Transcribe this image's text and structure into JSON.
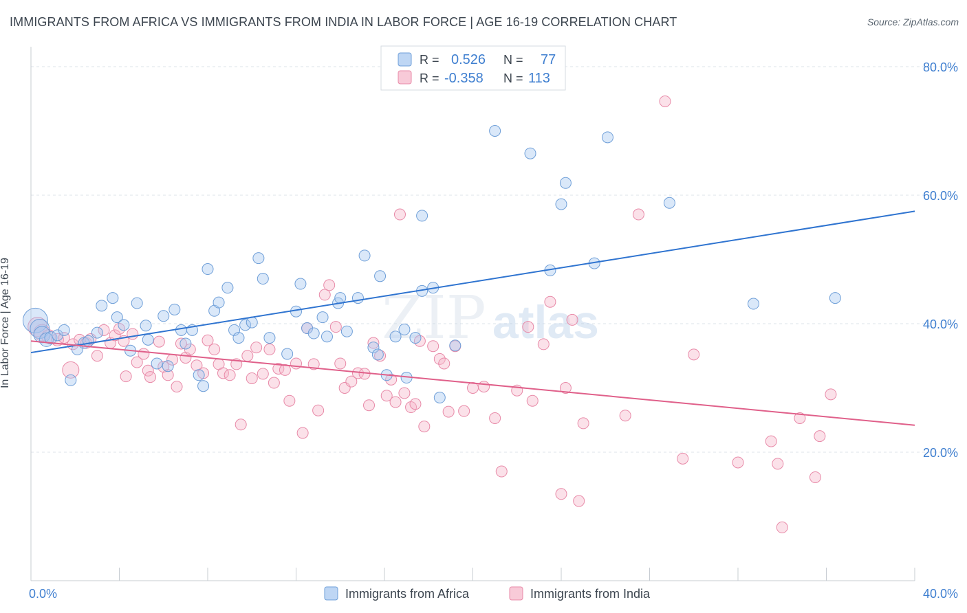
{
  "header": {
    "title": "IMMIGRANTS FROM AFRICA VS IMMIGRANTS FROM INDIA IN LABOR FORCE | AGE 16-19 CORRELATION CHART",
    "source": "Source: ZipAtlas.com"
  },
  "watermark": {
    "part1": "ZIP",
    "part2": "atlas"
  },
  "colors": {
    "africa_fill": "#a8c8f0",
    "africa_stroke": "#6f9fd8",
    "africa_line": "#2f74d0",
    "india_fill": "#f6b8cb",
    "india_stroke": "#e88aa8",
    "india_line": "#e0608a",
    "axis_text": "#3f7fd0",
    "grid": "#dde3ea"
  },
  "chart_data": {
    "type": "scatter",
    "title": "IMMIGRANTS FROM AFRICA VS IMMIGRANTS FROM INDIA IN LABOR FORCE | AGE 16-19 CORRELATION CHART",
    "xlabel": "",
    "ylabel": "In Labor Force | Age 16-19",
    "xlim": [
      0,
      40
    ],
    "ylim": [
      0,
      80
    ],
    "x_tick_labels": [
      "0.0%",
      "40.0%"
    ],
    "y_tick_values": [
      20,
      40,
      60,
      80
    ],
    "y_tick_labels": [
      "20.0%",
      "40.0%",
      "60.0%",
      "80.0%"
    ],
    "grid": true,
    "legend_top": [
      {
        "series": "Immigrants from Africa",
        "r_label": "R =",
        "r_value": "0.526",
        "n_label": "N =",
        "n_value": "77"
      },
      {
        "series": "Immigrants from India",
        "r_label": "R =",
        "r_value": "-0.358",
        "n_label": "N =",
        "n_value": "113"
      }
    ],
    "series": [
      {
        "name": "Immigrants from Africa",
        "trend": {
          "x": [
            0,
            40
          ],
          "y": [
            35.5,
            57.5
          ]
        },
        "points": [
          [
            0.2,
            40.5,
            18
          ],
          [
            0.4,
            39.2,
            14
          ],
          [
            0.5,
            38.3,
            12
          ],
          [
            0.7,
            37.5,
            10
          ],
          [
            0.9,
            37.8,
            9
          ],
          [
            1.2,
            38.2,
            8
          ],
          [
            1.5,
            39.0,
            8
          ],
          [
            1.8,
            31.2,
            8
          ],
          [
            2.1,
            36.0,
            8
          ],
          [
            2.4,
            37.0,
            8
          ],
          [
            2.6,
            37.3,
            8
          ],
          [
            3.0,
            38.6,
            8
          ],
          [
            3.2,
            42.8,
            8
          ],
          [
            3.7,
            44.0,
            8
          ],
          [
            3.9,
            41.0,
            8
          ],
          [
            4.2,
            39.8,
            8
          ],
          [
            4.5,
            35.8,
            8
          ],
          [
            4.8,
            43.2,
            8
          ],
          [
            5.2,
            39.7,
            8
          ],
          [
            5.3,
            37.5,
            8
          ],
          [
            5.7,
            33.8,
            8
          ],
          [
            6.0,
            41.2,
            8
          ],
          [
            6.2,
            33.4,
            8
          ],
          [
            6.5,
            42.2,
            8
          ],
          [
            6.8,
            39.0,
            8
          ],
          [
            7.0,
            36.9,
            8
          ],
          [
            7.3,
            39.0,
            8
          ],
          [
            7.6,
            32.0,
            8
          ],
          [
            7.8,
            30.3,
            8
          ],
          [
            8.0,
            48.5,
            8
          ],
          [
            8.3,
            42.0,
            8
          ],
          [
            8.5,
            43.3,
            8
          ],
          [
            8.9,
            45.6,
            8
          ],
          [
            9.2,
            39.0,
            8
          ],
          [
            9.4,
            37.8,
            8
          ],
          [
            9.7,
            39.8,
            8
          ],
          [
            10.0,
            40.2,
            8
          ],
          [
            10.3,
            50.2,
            8
          ],
          [
            10.5,
            47.0,
            8
          ],
          [
            10.8,
            37.8,
            8
          ],
          [
            11.6,
            35.3,
            8
          ],
          [
            12.0,
            41.9,
            8
          ],
          [
            12.2,
            46.2,
            8
          ],
          [
            12.5,
            39.3,
            8
          ],
          [
            12.8,
            38.5,
            8
          ],
          [
            13.2,
            41.0,
            8
          ],
          [
            13.4,
            38.0,
            8
          ],
          [
            13.9,
            43.2,
            8
          ],
          [
            14.0,
            44.0,
            8
          ],
          [
            14.3,
            38.8,
            8
          ],
          [
            14.8,
            44.0,
            8
          ],
          [
            15.1,
            50.6,
            8
          ],
          [
            15.5,
            36.3,
            8
          ],
          [
            15.7,
            35.2,
            8
          ],
          [
            15.8,
            47.4,
            8
          ],
          [
            16.1,
            32.0,
            8
          ],
          [
            16.5,
            38.0,
            8
          ],
          [
            16.9,
            39.1,
            8
          ],
          [
            17.0,
            31.6,
            8
          ],
          [
            17.4,
            37.8,
            8
          ],
          [
            17.7,
            56.8,
            8
          ],
          [
            17.7,
            45.1,
            8
          ],
          [
            18.2,
            45.6,
            8
          ],
          [
            18.5,
            28.5,
            8
          ],
          [
            19.2,
            36.6,
            8
          ],
          [
            21.0,
            70.0,
            8
          ],
          [
            22.6,
            66.5,
            8
          ],
          [
            23.5,
            48.3,
            8
          ],
          [
            24.0,
            58.6,
            8
          ],
          [
            24.2,
            61.9,
            8
          ],
          [
            25.5,
            49.4,
            8
          ],
          [
            26.1,
            69.0,
            8
          ],
          [
            28.9,
            58.8,
            8
          ],
          [
            32.7,
            43.1,
            8
          ],
          [
            36.4,
            44.0,
            8
          ]
        ]
      },
      {
        "name": "Immigrants from India",
        "trend": {
          "x": [
            0,
            40
          ],
          "y": [
            37.3,
            24.2
          ]
        },
        "points": [
          [
            0.3,
            39.5,
            14
          ],
          [
            0.5,
            38.6,
            12
          ],
          [
            0.8,
            38.0,
            10
          ],
          [
            1.2,
            37.5,
            9
          ],
          [
            1.5,
            37.8,
            8
          ],
          [
            1.8,
            32.8,
            12
          ],
          [
            1.9,
            36.8,
            8
          ],
          [
            2.2,
            37.5,
            8
          ],
          [
            2.5,
            37.0,
            8
          ],
          [
            2.7,
            37.6,
            8
          ],
          [
            3.0,
            35.0,
            8
          ],
          [
            3.3,
            39.0,
            8
          ],
          [
            3.6,
            37.0,
            8
          ],
          [
            3.8,
            38.2,
            8
          ],
          [
            4.0,
            39.2,
            8
          ],
          [
            4.2,
            37.3,
            8
          ],
          [
            4.3,
            31.8,
            8
          ],
          [
            4.6,
            38.4,
            8
          ],
          [
            4.8,
            34.0,
            8
          ],
          [
            5.1,
            35.3,
            8
          ],
          [
            5.3,
            32.7,
            8
          ],
          [
            5.4,
            31.7,
            8
          ],
          [
            5.8,
            37.2,
            8
          ],
          [
            6.0,
            33.3,
            8
          ],
          [
            6.2,
            32.0,
            8
          ],
          [
            6.4,
            34.4,
            8
          ],
          [
            6.6,
            30.2,
            8
          ],
          [
            6.8,
            36.9,
            8
          ],
          [
            7.0,
            34.7,
            8
          ],
          [
            7.2,
            36.0,
            8
          ],
          [
            7.5,
            33.5,
            8
          ],
          [
            7.8,
            32.3,
            8
          ],
          [
            8.0,
            37.4,
            8
          ],
          [
            8.3,
            36.0,
            8
          ],
          [
            8.5,
            33.7,
            8
          ],
          [
            8.7,
            32.3,
            8
          ],
          [
            9.0,
            32.0,
            8
          ],
          [
            9.3,
            33.7,
            8
          ],
          [
            9.5,
            24.3,
            8
          ],
          [
            9.8,
            35.0,
            8
          ],
          [
            10.0,
            31.5,
            8
          ],
          [
            10.2,
            36.3,
            8
          ],
          [
            10.5,
            32.2,
            8
          ],
          [
            10.8,
            36.0,
            8
          ],
          [
            11.0,
            30.8,
            8
          ],
          [
            11.2,
            33.0,
            8
          ],
          [
            11.5,
            32.8,
            8
          ],
          [
            11.7,
            28.0,
            8
          ],
          [
            12.0,
            33.8,
            8
          ],
          [
            12.3,
            23.0,
            8
          ],
          [
            12.5,
            39.3,
            8
          ],
          [
            12.8,
            33.7,
            8
          ],
          [
            13.0,
            26.5,
            8
          ],
          [
            13.3,
            44.5,
            8
          ],
          [
            13.5,
            46.0,
            8
          ],
          [
            13.8,
            39.5,
            8
          ],
          [
            14.0,
            33.8,
            8
          ],
          [
            14.2,
            30.0,
            8
          ],
          [
            14.5,
            31.0,
            8
          ],
          [
            14.8,
            32.3,
            8
          ],
          [
            15.1,
            32.2,
            8
          ],
          [
            15.3,
            27.3,
            8
          ],
          [
            15.5,
            37.0,
            8
          ],
          [
            15.8,
            35.0,
            8
          ],
          [
            16.1,
            28.8,
            8
          ],
          [
            16.3,
            31.3,
            8
          ],
          [
            16.5,
            27.8,
            8
          ],
          [
            16.7,
            57.0,
            8
          ],
          [
            16.9,
            29.2,
            8
          ],
          [
            17.2,
            27.0,
            8
          ],
          [
            17.4,
            27.5,
            8
          ],
          [
            17.6,
            37.3,
            8
          ],
          [
            17.8,
            24.0,
            8
          ],
          [
            18.2,
            36.5,
            8
          ],
          [
            18.5,
            34.5,
            8
          ],
          [
            18.7,
            33.8,
            8
          ],
          [
            18.9,
            26.3,
            8
          ],
          [
            19.2,
            36.5,
            8
          ],
          [
            19.6,
            26.4,
            8
          ],
          [
            20.0,
            30.0,
            8
          ],
          [
            20.5,
            30.2,
            8
          ],
          [
            21.0,
            25.3,
            8
          ],
          [
            21.3,
            17.0,
            8
          ],
          [
            22.0,
            29.6,
            8
          ],
          [
            22.5,
            39.5,
            8
          ],
          [
            22.7,
            28.0,
            8
          ],
          [
            23.2,
            36.8,
            8
          ],
          [
            23.5,
            43.4,
            8
          ],
          [
            24.0,
            13.5,
            8
          ],
          [
            24.2,
            30.0,
            8
          ],
          [
            24.5,
            40.6,
            8
          ],
          [
            24.8,
            12.4,
            8
          ],
          [
            25.0,
            24.5,
            8
          ],
          [
            26.9,
            25.7,
            8
          ],
          [
            27.5,
            57.0,
            8
          ],
          [
            28.7,
            74.6,
            8
          ],
          [
            29.5,
            19.0,
            8
          ],
          [
            30.0,
            35.2,
            8
          ],
          [
            32.0,
            18.4,
            8
          ],
          [
            33.5,
            21.7,
            8
          ],
          [
            33.8,
            18.2,
            8
          ],
          [
            34.0,
            8.3,
            8
          ],
          [
            34.8,
            25.3,
            8
          ],
          [
            35.5,
            16.1,
            8
          ],
          [
            35.7,
            22.5,
            8
          ],
          [
            36.2,
            29.0,
            8
          ]
        ]
      }
    ]
  },
  "legend_bottom": [
    {
      "label": "Immigrants from Africa"
    },
    {
      "label": "Immigrants from India"
    }
  ]
}
